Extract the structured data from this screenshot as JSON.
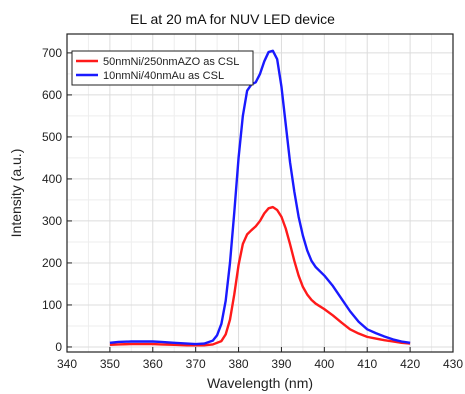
{
  "chart_data": {
    "type": "line",
    "title": "EL at 20 mA for NUV LED device",
    "xlabel": "Wavelength (nm)",
    "ylabel": "Intensity (a.u.)",
    "xlim": [
      340,
      430
    ],
    "ylim": [
      -12,
      745
    ],
    "xticks": [
      340,
      350,
      360,
      370,
      380,
      390,
      400,
      410,
      420,
      430
    ],
    "yticks": [
      0,
      100,
      200,
      300,
      400,
      500,
      600,
      700
    ],
    "grid": true,
    "legend_position": "top-left",
    "series": [
      {
        "name": "50nmNi/250nmAZO as CSL",
        "color": "#ff1a1a",
        "x": [
          350,
          352,
          355,
          358,
          360,
          362,
          365,
          368,
          370,
          372,
          374,
          376,
          377,
          378,
          379,
          380,
          381,
          382,
          383,
          384,
          385,
          386,
          387,
          388,
          389,
          390,
          391,
          392,
          393,
          394,
          395,
          396,
          397,
          398,
          400,
          402,
          404,
          406,
          408,
          410,
          412,
          414,
          416,
          418,
          420
        ],
        "y": [
          5,
          6,
          7,
          7,
          7,
          6,
          5,
          4,
          4,
          4,
          6,
          14,
          30,
          65,
          125,
          195,
          245,
          268,
          278,
          287,
          300,
          318,
          330,
          333,
          326,
          310,
          282,
          245,
          205,
          170,
          143,
          125,
          112,
          103,
          90,
          75,
          58,
          42,
          32,
          24,
          20,
          16,
          13,
          10,
          8
        ]
      },
      {
        "name": "10nmNi/40nmAu as CSL",
        "color": "#1a1aff",
        "x": [
          350,
          352,
          355,
          358,
          360,
          362,
          365,
          368,
          370,
          372,
          374,
          375,
          376,
          377,
          378,
          379,
          380,
          381,
          382,
          383,
          384,
          385,
          386,
          387,
          388,
          389,
          390,
          391,
          392,
          393,
          394,
          395,
          396,
          397,
          398,
          400,
          402,
          404,
          406,
          408,
          410,
          412,
          414,
          416,
          418,
          420
        ],
        "y": [
          10,
          12,
          13,
          13,
          13,
          12,
          10,
          8,
          7,
          8,
          15,
          28,
          55,
          110,
          200,
          320,
          450,
          550,
          610,
          625,
          630,
          650,
          680,
          702,
          705,
          685,
          620,
          530,
          440,
          370,
          310,
          265,
          230,
          205,
          190,
          170,
          145,
          115,
          85,
          60,
          42,
          33,
          25,
          18,
          13,
          10
        ]
      }
    ]
  }
}
